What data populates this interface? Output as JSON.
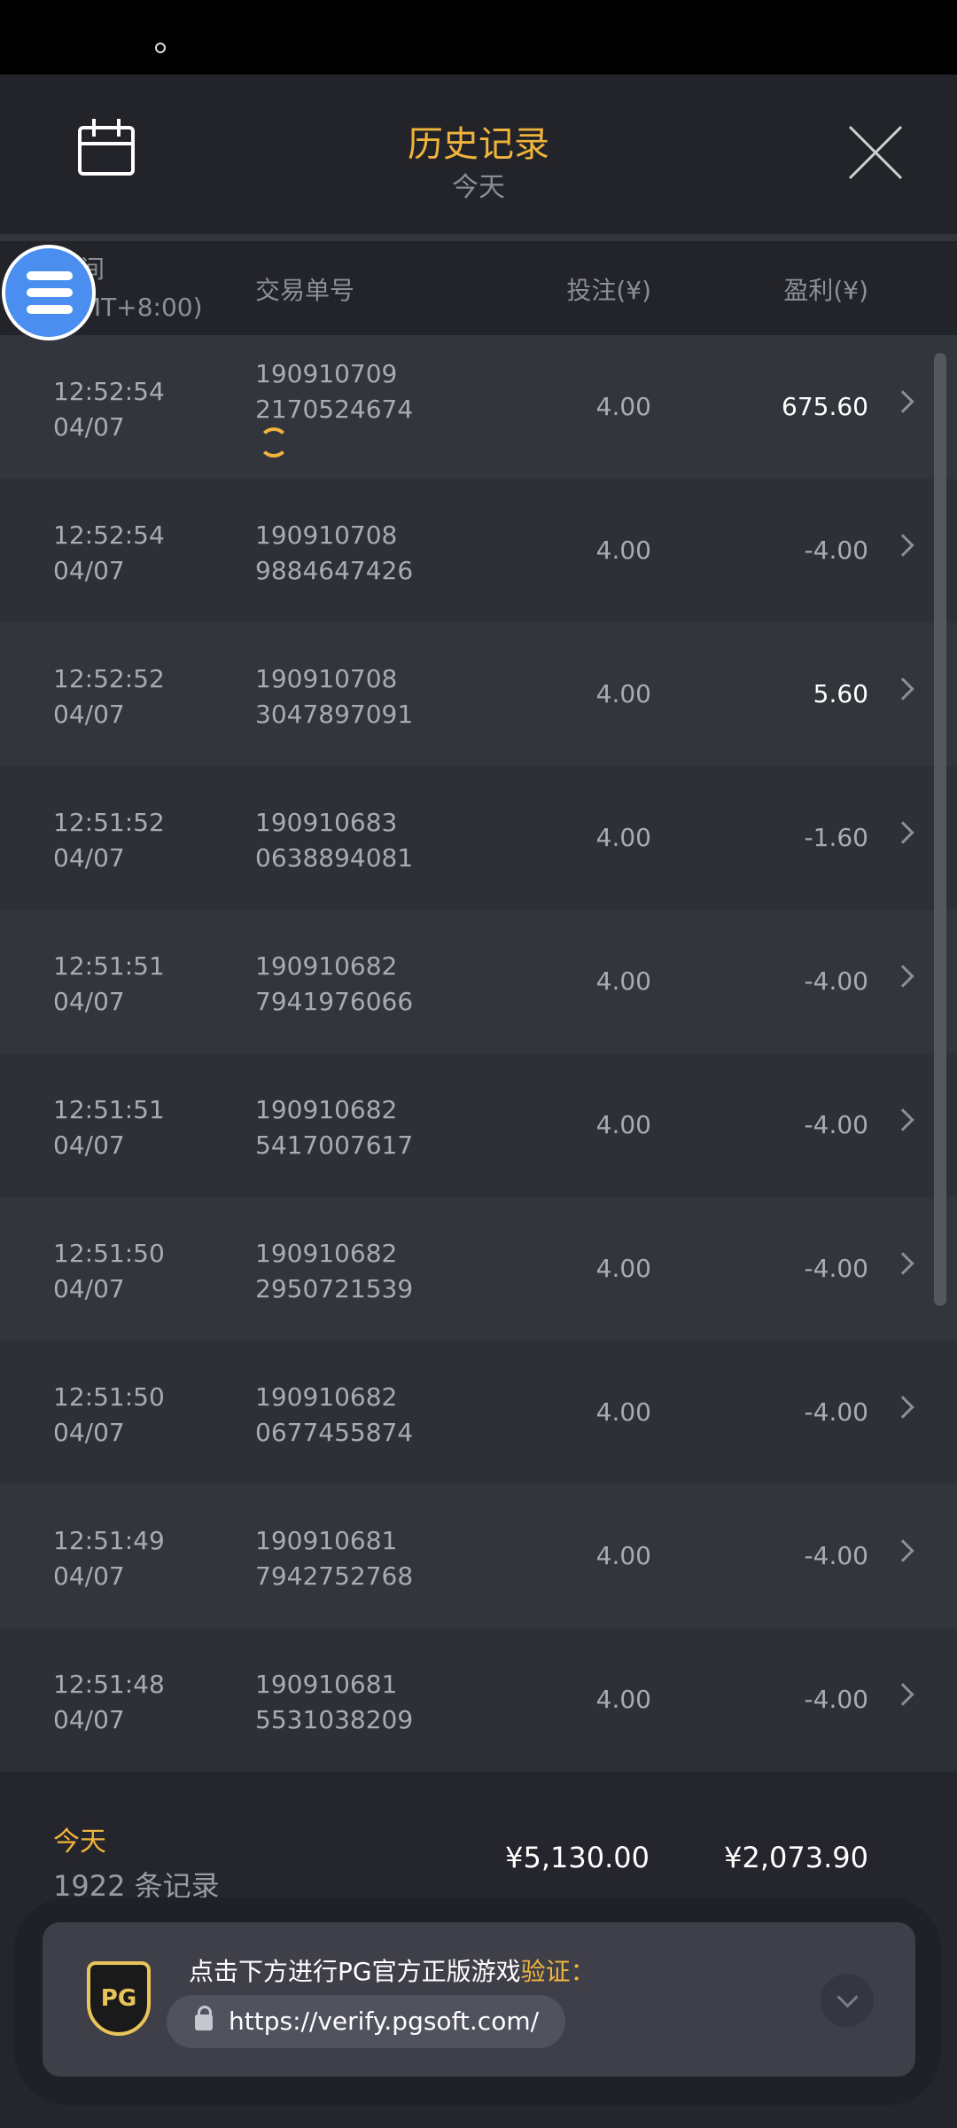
{
  "header": {
    "title": "历史记录",
    "subtitle": "今天",
    "calendar_icon": "calendar-icon",
    "close_icon": "close-icon"
  },
  "columns": {
    "time": "间",
    "time_tz": "MT+8:00)",
    "id": "交易单号",
    "bet": "投注(¥)",
    "profit": "盈利(¥)"
  },
  "rows": [
    {
      "time": "12:52:54",
      "date": "04/07",
      "id1": "190910709",
      "id2": "2170524674",
      "bet": "4.00",
      "profit": "675.60",
      "win": true,
      "sync": true
    },
    {
      "time": "12:52:54",
      "date": "04/07",
      "id1": "190910708",
      "id2": "9884647426",
      "bet": "4.00",
      "profit": "-4.00"
    },
    {
      "time": "12:52:52",
      "date": "04/07",
      "id1": "190910708",
      "id2": "3047897091",
      "bet": "4.00",
      "profit": "5.60",
      "win": true
    },
    {
      "time": "12:51:52",
      "date": "04/07",
      "id1": "190910683",
      "id2": "0638894081",
      "bet": "4.00",
      "profit": "-1.60"
    },
    {
      "time": "12:51:51",
      "date": "04/07",
      "id1": "190910682",
      "id2": "7941976066",
      "bet": "4.00",
      "profit": "-4.00"
    },
    {
      "time": "12:51:51",
      "date": "04/07",
      "id1": "190910682",
      "id2": "5417007617",
      "bet": "4.00",
      "profit": "-4.00"
    },
    {
      "time": "12:51:50",
      "date": "04/07",
      "id1": "190910682",
      "id2": "2950721539",
      "bet": "4.00",
      "profit": "-4.00"
    },
    {
      "time": "12:51:50",
      "date": "04/07",
      "id1": "190910682",
      "id2": "0677455874",
      "bet": "4.00",
      "profit": "-4.00"
    },
    {
      "time": "12:51:49",
      "date": "04/07",
      "id1": "190910681",
      "id2": "7942752768",
      "bet": "4.00",
      "profit": "-4.00"
    },
    {
      "time": "12:51:48",
      "date": "04/07",
      "id1": "190910681",
      "id2": "5531038209",
      "bet": "4.00",
      "profit": "-4.00"
    }
  ],
  "footer": {
    "period": "今天",
    "count": "1922 条记录",
    "total_bet": "¥5,130.00",
    "total_profit": "¥2,073.90"
  },
  "verify": {
    "logo": "PG",
    "text": "点击下方进行PG官方正版游戏",
    "highlight": "验证",
    "colon": "：",
    "url": "https://verify.pgsoft.com/"
  },
  "colors": {
    "accent": "#f0b43c",
    "fab": "#4a8ef0"
  }
}
